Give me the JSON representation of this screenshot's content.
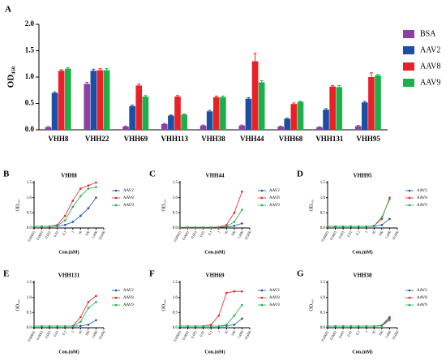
{
  "chart_data": [
    {
      "type": "bar",
      "label": "A",
      "ylabel": "OD₄₅₀",
      "categories": [
        "VHH8",
        "VHH22",
        "VHH69",
        "VHH113",
        "VHH38",
        "VHH44",
        "VHH68",
        "VHH131",
        "VHH95"
      ],
      "ylim": [
        0,
        2.0
      ],
      "yticks": [
        {
          "value": 0,
          "label": "0.0"
        },
        0.5,
        {
          "value": 1.0,
          "label": "1.0"
        },
        1.5,
        {
          "value": 2.0,
          "label": "2.0"
        }
      ],
      "series": [
        {
          "name": "BSA",
          "color": "#8e3fa3",
          "values": [
            0.05,
            0.87,
            0.06,
            0.11,
            0.08,
            0.08,
            0.06,
            0.05,
            0.07
          ],
          "errors": [
            0.01,
            0.03,
            0.01,
            0.01,
            0.01,
            0.01,
            0.01,
            0.01,
            0.01
          ]
        },
        {
          "name": "AAV2",
          "color": "#1c4fa3",
          "values": [
            0.7,
            1.12,
            0.45,
            0.27,
            0.35,
            0.59,
            0.21,
            0.38,
            0.52
          ],
          "errors": [
            0.02,
            0.03,
            0.02,
            0.01,
            0.02,
            0.02,
            0.01,
            0.02,
            0.02
          ]
        },
        {
          "name": "AAV8",
          "color": "#ea2027",
          "values": [
            1.12,
            1.13,
            0.84,
            0.63,
            0.62,
            1.3,
            0.49,
            0.82,
            1.0
          ],
          "errors": [
            0.02,
            0.03,
            0.03,
            0.02,
            0.02,
            0.15,
            0.02,
            0.02,
            0.08
          ]
        },
        {
          "name": "AAV9",
          "color": "#1caf4c",
          "values": [
            1.16,
            1.13,
            0.63,
            0.29,
            0.62,
            0.9,
            0.53,
            0.81,
            1.03
          ],
          "errors": [
            0.02,
            0.03,
            0.02,
            0.01,
            0.02,
            0.03,
            0.01,
            0.03,
            0.02
          ]
        }
      ]
    },
    {
      "type": "line",
      "label": "B",
      "title": "VHH8",
      "ylabel": "OD₄₅₀",
      "xlabel": "Con.(nM)",
      "xlog": true,
      "x": [
        1e-05,
        0.0001,
        0.001,
        0.01,
        0.1,
        1,
        10,
        100,
        1000
      ],
      "xlim": [
        1e-05,
        10000
      ],
      "xticks": [
        1e-05,
        0.0001,
        0.001,
        0.01,
        0.1,
        1,
        10,
        100,
        {
          "value": 1000,
          "label": "1,000"
        },
        {
          "value": 10000,
          "label": "10,000"
        }
      ],
      "ylim": [
        0,
        1.5
      ],
      "yticks": [
        {
          "value": 0,
          "label": "0.0"
        },
        0.5,
        {
          "value": 1.0,
          "label": "1.0"
        },
        1.5
      ],
      "series": [
        {
          "name": "AAV2",
          "color": "#1c4fa3",
          "values": [
            0.05,
            0.05,
            0.05,
            0.06,
            0.1,
            0.2,
            0.4,
            0.65,
            1.0
          ]
        },
        {
          "name": "AAV8",
          "color": "#ea2027",
          "values": [
            0.05,
            0.05,
            0.05,
            0.1,
            0.4,
            0.9,
            1.3,
            1.4,
            1.5
          ]
        },
        {
          "name": "AAV9",
          "color": "#1caf4c",
          "values": [
            0.05,
            0.05,
            0.05,
            0.08,
            0.25,
            0.7,
            1.05,
            1.3,
            1.35
          ]
        }
      ]
    },
    {
      "type": "line",
      "label": "C",
      "title": "VHH44",
      "ylabel": "OD₄₅₀",
      "xlabel": "Con.(nM)",
      "xlog": true,
      "x": [
        1e-05,
        0.0001,
        0.001,
        0.01,
        0.1,
        1,
        10,
        100,
        1000
      ],
      "xlim": [
        1e-05,
        10000
      ],
      "xticks": [
        1e-05,
        0.0001,
        0.001,
        0.01,
        0.1,
        1,
        10,
        100,
        {
          "value": 1000,
          "label": "1,000"
        },
        {
          "value": 10000,
          "label": "10,000"
        }
      ],
      "ylim": [
        0,
        1.5
      ],
      "yticks": [
        {
          "value": 0,
          "label": "0.0"
        },
        0.5,
        {
          "value": 1.0,
          "label": "1.0"
        },
        1.5
      ],
      "series": [
        {
          "name": "AAV2",
          "color": "#1c4fa3",
          "values": [
            0.02,
            0.02,
            0.02,
            0.02,
            0.02,
            0.02,
            0.03,
            0.07,
            0.15
          ]
        },
        {
          "name": "AAV8",
          "color": "#ea2027",
          "values": [
            0.02,
            0.02,
            0.02,
            0.02,
            0.02,
            0.03,
            0.1,
            0.5,
            1.2
          ]
        },
        {
          "name": "AAV9",
          "color": "#1caf4c",
          "values": [
            0.02,
            0.02,
            0.02,
            0.02,
            0.02,
            0.02,
            0.05,
            0.2,
            0.6
          ]
        }
      ]
    },
    {
      "type": "line",
      "label": "D",
      "title": "VHH95",
      "ylabel": "OD₄₅₀",
      "xlabel": "Con.(nM)",
      "xlog": true,
      "x": [
        1e-05,
        0.0001,
        0.001,
        0.01,
        0.1,
        1,
        10,
        100,
        1000
      ],
      "xlim": [
        1e-05,
        10000
      ],
      "xticks": [
        1e-05,
        0.0001,
        0.001,
        0.01,
        0.1,
        1,
        10,
        100,
        {
          "value": 1000,
          "label": "1,000"
        },
        {
          "value": 10000,
          "label": "10,000"
        }
      ],
      "ylim": [
        0,
        1.5
      ],
      "yticks": [
        {
          "value": 0,
          "label": "0.0"
        },
        0.5,
        {
          "value": 1.0,
          "label": "1.0"
        },
        1.5
      ],
      "series": [
        {
          "name": "AAV2",
          "color": "#1c4fa3",
          "values": [
            0.05,
            0.05,
            0.05,
            0.05,
            0.05,
            0.05,
            0.06,
            0.1,
            0.3
          ]
        },
        {
          "name": "AAV8",
          "color": "#ea2027",
          "values": [
            0.05,
            0.05,
            0.05,
            0.05,
            0.05,
            0.05,
            0.07,
            0.3,
            1.0
          ]
        },
        {
          "name": "AAV9",
          "color": "#1caf4c",
          "values": [
            0.05,
            0.05,
            0.05,
            0.05,
            0.05,
            0.05,
            0.07,
            0.35,
            0.95
          ]
        }
      ]
    },
    {
      "type": "line",
      "label": "E",
      "title": "VHH131",
      "ylabel": "OD₄₅₀",
      "xlabel": "Con.(nM)",
      "xlog": true,
      "x": [
        1e-05,
        0.0001,
        0.001,
        0.01,
        0.1,
        1,
        10,
        100,
        1000
      ],
      "xlim": [
        1e-05,
        10000
      ],
      "xticks": [
        1e-05,
        0.0001,
        0.001,
        0.01,
        0.1,
        1,
        10,
        100,
        {
          "value": 1000,
          "label": "1,000"
        },
        {
          "value": 10000,
          "label": "10,000"
        }
      ],
      "ylim": [
        0,
        1.5
      ],
      "yticks": [
        {
          "value": 0,
          "label": "0.0"
        },
        0.5,
        {
          "value": 1.0,
          "label": "1.0"
        },
        1.5
      ],
      "series": [
        {
          "name": "AAV2",
          "color": "#1c4fa3",
          "values": [
            0.05,
            0.05,
            0.05,
            0.05,
            0.05,
            0.05,
            0.06,
            0.1,
            0.25
          ]
        },
        {
          "name": "AAV8",
          "color": "#ea2027",
          "values": [
            0.05,
            0.05,
            0.05,
            0.05,
            0.05,
            0.06,
            0.35,
            0.85,
            1.05
          ]
        },
        {
          "name": "AAV9",
          "color": "#1caf4c",
          "values": [
            0.05,
            0.05,
            0.05,
            0.05,
            0.05,
            0.05,
            0.2,
            0.65,
            0.85
          ]
        }
      ]
    },
    {
      "type": "line",
      "label": "F",
      "title": "VHH69",
      "ylabel": "OD₄₅₀",
      "xlabel": "Con.(nM)",
      "xlog": true,
      "x": [
        1e-05,
        0.0001,
        0.001,
        0.01,
        0.1,
        1,
        10,
        100,
        1000
      ],
      "xlim": [
        1e-05,
        10000
      ],
      "xticks": [
        1e-05,
        0.0001,
        0.001,
        0.01,
        0.1,
        1,
        10,
        100,
        {
          "value": 1000,
          "label": "1,000"
        },
        {
          "value": 10000,
          "label": "10,000"
        }
      ],
      "ylim": [
        0,
        1.5
      ],
      "yticks": [
        {
          "value": 0,
          "label": "0.0"
        },
        0.5,
        {
          "value": 1.0,
          "label": "1.0"
        },
        1.5
      ],
      "series": [
        {
          "name": "AAV2",
          "color": "#1c4fa3",
          "values": [
            0.05,
            0.05,
            0.05,
            0.05,
            0.05,
            0.05,
            0.06,
            0.1,
            0.3
          ]
        },
        {
          "name": "AAV8",
          "color": "#ea2027",
          "values": [
            0.05,
            0.05,
            0.05,
            0.05,
            0.1,
            0.4,
            1.15,
            1.2,
            1.2
          ]
        },
        {
          "name": "AAV9",
          "color": "#1caf4c",
          "values": [
            0.05,
            0.05,
            0.05,
            0.05,
            0.05,
            0.05,
            0.1,
            0.4,
            0.75
          ]
        }
      ]
    },
    {
      "type": "line",
      "label": "G",
      "title": "VHH38",
      "ylabel": "OD₄₅₀",
      "xlabel": "Con.(nM)",
      "xlog": true,
      "x": [
        1e-05,
        0.0001,
        0.001,
        0.01,
        0.1,
        1,
        10,
        100,
        1000
      ],
      "xlim": [
        1e-05,
        10000
      ],
      "xticks": [
        1e-05,
        0.0001,
        0.001,
        0.01,
        0.1,
        1,
        10,
        100,
        {
          "value": 1000,
          "label": "1,000"
        },
        {
          "value": 10000,
          "label": "10,000"
        }
      ],
      "ylim": [
        0,
        1.5
      ],
      "yticks": [
        {
          "value": 0,
          "label": "0.0"
        },
        0.5,
        {
          "value": 1.0,
          "label": "1.0"
        },
        1.5
      ],
      "series": [
        {
          "name": "AAV2",
          "color": "#1c4fa3",
          "values": [
            0.05,
            0.05,
            0.05,
            0.05,
            0.05,
            0.05,
            0.05,
            0.08,
            0.35
          ]
        },
        {
          "name": "AAV8",
          "color": "#ea2027",
          "values": [
            0.05,
            0.05,
            0.05,
            0.05,
            0.05,
            0.05,
            0.05,
            0.07,
            0.3
          ]
        },
        {
          "name": "AAV9",
          "color": "#1caf4c",
          "values": [
            0.05,
            0.05,
            0.05,
            0.05,
            0.05,
            0.05,
            0.05,
            0.06,
            0.25
          ]
        }
      ]
    }
  ]
}
